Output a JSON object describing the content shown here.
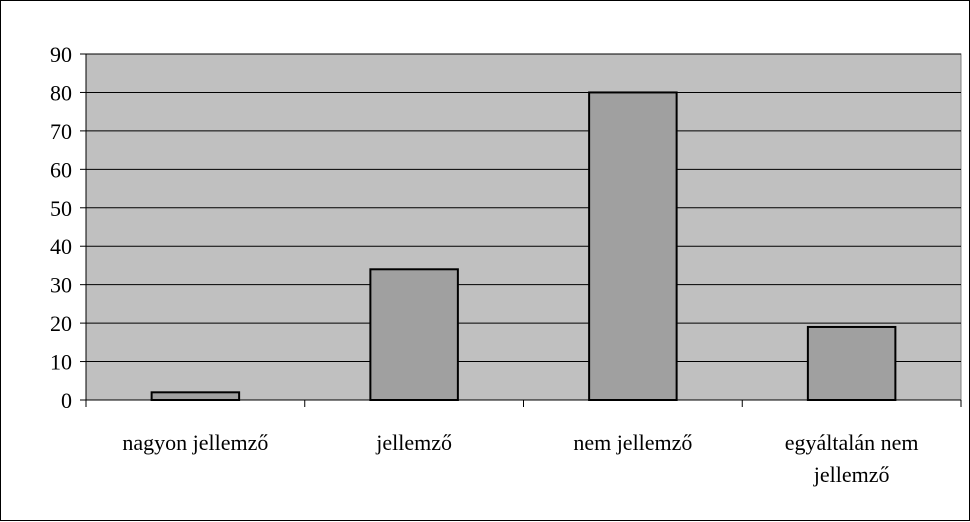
{
  "chart_data": {
    "type": "bar",
    "categories": [
      "nagyon jellemző",
      "jellemző",
      "nem jellemző",
      "egyáltalán nem jellemző"
    ],
    "category_label_lines": [
      [
        "nagyon jellemző"
      ],
      [
        "jellemző"
      ],
      [
        "nem jellemző"
      ],
      [
        "egyáltalán nem",
        "jellemző"
      ]
    ],
    "values": [
      2,
      34,
      80,
      19
    ],
    "ylim": [
      0,
      90
    ],
    "yticks": [
      0,
      10,
      20,
      30,
      40,
      50,
      60,
      70,
      80,
      90
    ],
    "title": "",
    "xlabel": "",
    "ylabel": "",
    "grid": true,
    "legend": "none"
  },
  "colors": {
    "plot_background": "#c0c0c0",
    "bar_fill": "#a0a0a0",
    "bar_stroke": "#000000",
    "gridline": "#000000"
  }
}
